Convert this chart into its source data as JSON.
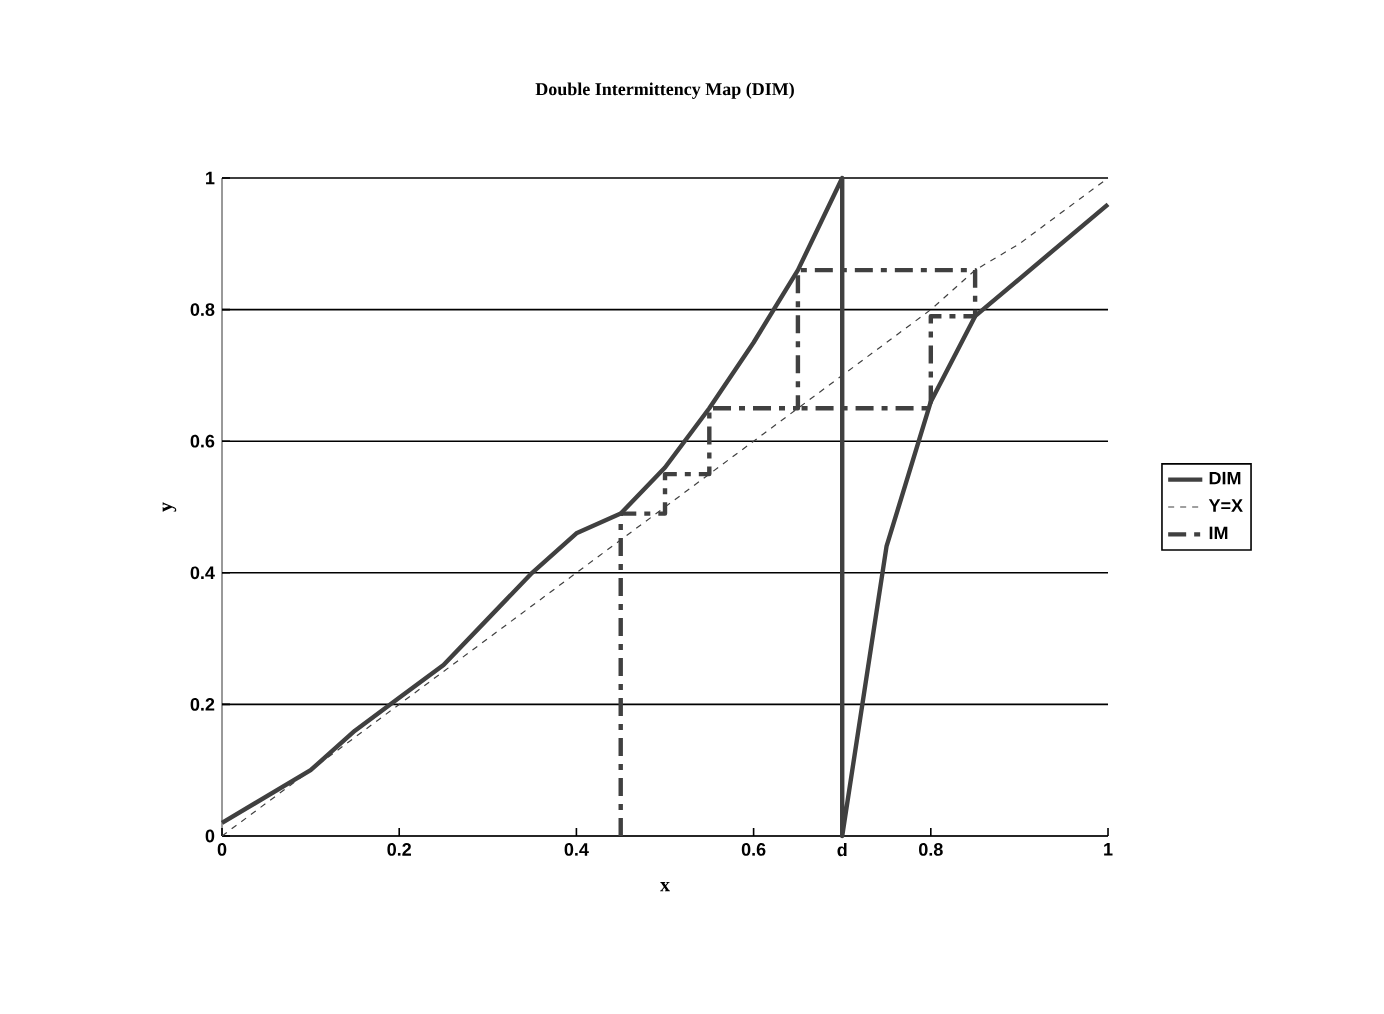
{
  "chart_data": {
    "type": "line",
    "title": "Double Intermittency Map (DIM)",
    "xlabel": "x",
    "ylabel": "y",
    "xlim": [
      0,
      1
    ],
    "ylim": [
      0,
      1
    ],
    "xticks": [
      0,
      0.2,
      0.4,
      0.6,
      {
        "value": 0.7,
        "label": "d"
      },
      0.8,
      1
    ],
    "yticks": [
      0,
      0.2,
      0.4,
      0.6,
      0.8,
      1
    ],
    "grid": "y",
    "legend": "right",
    "series": [
      {
        "name": "DIM",
        "color": "#404040",
        "line_style": "solid",
        "x": [
          0,
          0.1,
          0.15,
          0.2,
          0.25,
          0.3,
          0.35,
          0.4,
          0.45,
          0.5,
          0.55,
          0.6,
          0.65,
          0.7,
          0.7,
          0.75,
          0.8,
          0.85,
          1
        ],
        "values": [
          0.02,
          0.1,
          0.16,
          0.21,
          0.26,
          0.33,
          0.4,
          0.46,
          0.49,
          0.56,
          0.65,
          0.75,
          0.86,
          1,
          0,
          0.44,
          0.66,
          0.79,
          0.96
        ]
      },
      {
        "name": "Y=X",
        "color": "#404040",
        "line_style": "dashed",
        "x": [
          0,
          0.1,
          0.2,
          0.3,
          0.4,
          0.5,
          0.55,
          0.6,
          0.7,
          0.8,
          0.85,
          0.9,
          1
        ],
        "values": [
          0,
          0.1,
          0.2,
          0.3,
          0.4,
          0.5,
          0.55,
          0.6,
          0.7,
          0.8,
          0.86,
          0.9,
          1
        ]
      },
      {
        "name": "IM",
        "color": "#404040",
        "line_style": "dashdot",
        "x": [
          0.45,
          0.45,
          0.5,
          0.5,
          0.55,
          0.55,
          0.65,
          0.65,
          0.85,
          0.85,
          0.8,
          0.8,
          0.65
        ],
        "values": [
          0,
          0.49,
          0.49,
          0.55,
          0.55,
          0.65,
          0.65,
          0.86,
          0.86,
          0.79,
          0.79,
          0.65,
          0.65
        ]
      }
    ]
  }
}
